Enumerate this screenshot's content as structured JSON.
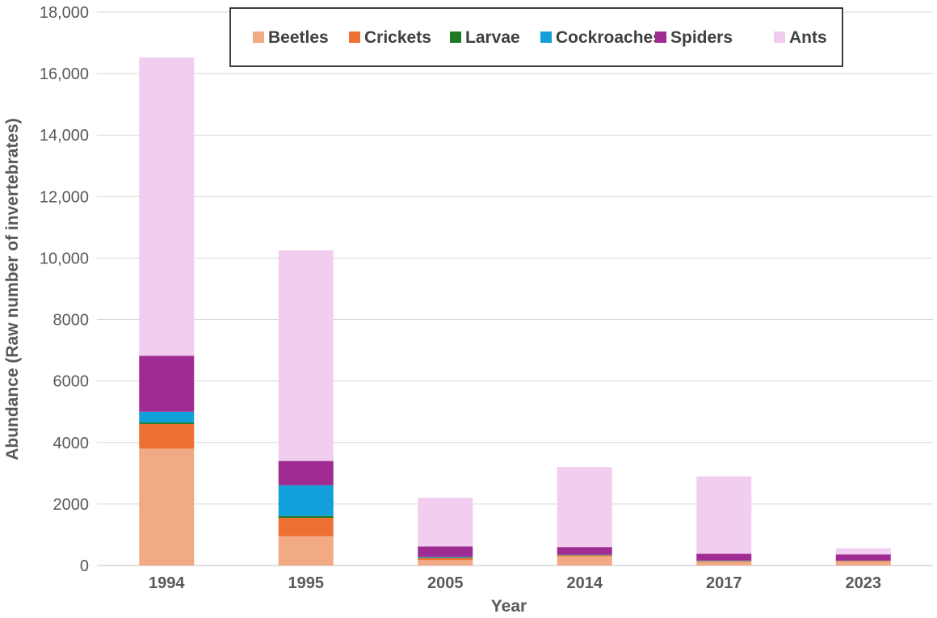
{
  "chart_data": {
    "type": "bar",
    "stacked": true,
    "xlabel": "Year",
    "ylabel": "Abundance (Raw number of invertebrates)",
    "ylim": [
      0,
      18000
    ],
    "yticks": [
      0,
      2000,
      4000,
      6000,
      8000,
      10000,
      12000,
      14000,
      16000,
      18000
    ],
    "ytick_labels": [
      "0",
      "2000",
      "4000",
      "6000",
      "8000",
      "10,000",
      "12,000",
      "14,000",
      "16,000",
      "18,000"
    ],
    "grid": true,
    "legend_position": "top",
    "categories": [
      "1994",
      "1995",
      "2005",
      "2014",
      "2017",
      "2023"
    ],
    "series": [
      {
        "name": "Beetles",
        "color": "#F2AA84",
        "values": [
          3800,
          950,
          180,
          300,
          120,
          130
        ]
      },
      {
        "name": "Crickets",
        "color": "#ED7132",
        "values": [
          800,
          600,
          60,
          30,
          20,
          20
        ]
      },
      {
        "name": "Larvae",
        "color": "#1E7B24",
        "values": [
          50,
          60,
          20,
          10,
          10,
          5
        ]
      },
      {
        "name": "Cockroaches",
        "color": "#11A0D9",
        "values": [
          350,
          1000,
          20,
          10,
          10,
          5
        ]
      },
      {
        "name": "Spiders",
        "color": "#A02B93",
        "values": [
          1820,
          790,
          340,
          250,
          220,
          200
        ]
      },
      {
        "name": "Ants",
        "color": "#F1CDEF",
        "values": [
          9700,
          6850,
          1580,
          2600,
          2520,
          200
        ]
      }
    ]
  }
}
